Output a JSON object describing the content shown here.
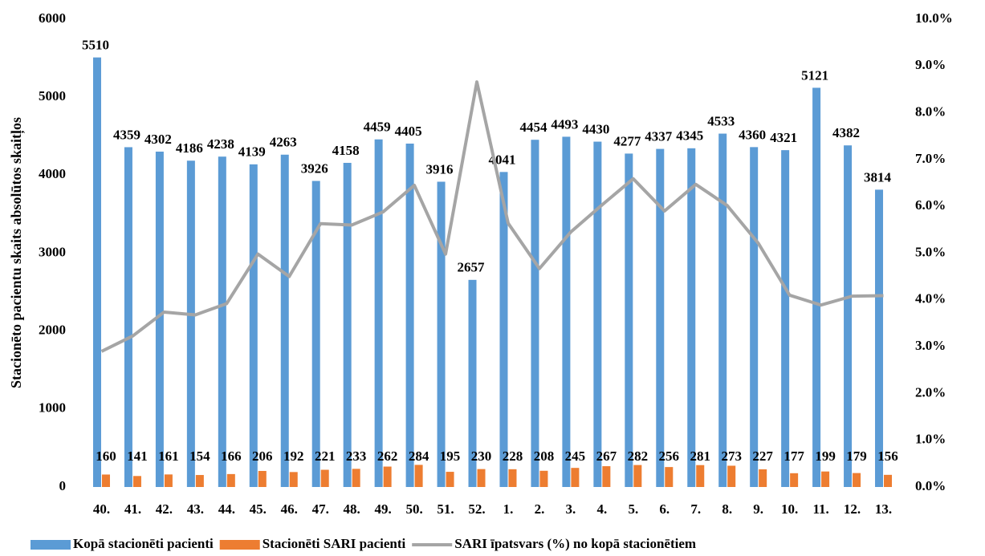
{
  "chart_data": {
    "type": "bar",
    "y_label": "Stacionēto pacientu skaits absolūtos skaitļos",
    "categories": [
      "40.",
      "41.",
      "42.",
      "43.",
      "44.",
      "45.",
      "46.",
      "47.",
      "48.",
      "49.",
      "50.",
      "51.",
      "52.",
      "1.",
      "2.",
      "3.",
      "4.",
      "5.",
      "6.",
      "7.",
      "8.",
      "9.",
      "10.",
      "11.",
      "12.",
      "13."
    ],
    "series": [
      {
        "name": "Kopā stacionēti pacienti",
        "type": "bar",
        "color": "#5b9bd5",
        "values": [
          5510,
          4359,
          4302,
          4186,
          4238,
          4139,
          4263,
          3926,
          4158,
          4459,
          4405,
          3916,
          2657,
          4041,
          4454,
          4493,
          4430,
          4277,
          4337,
          4345,
          4533,
          4360,
          4321,
          5121,
          4382,
          3814
        ]
      },
      {
        "name": "Stacionēti SARI pacienti",
        "type": "bar",
        "color": "#ed7d31",
        "values": [
          160,
          141,
          161,
          154,
          166,
          206,
          192,
          221,
          233,
          262,
          284,
          195,
          230,
          228,
          208,
          245,
          267,
          282,
          256,
          281,
          273,
          227,
          177,
          199,
          179,
          156
        ]
      },
      {
        "name": "SARI īpatsvars (%) no kopā stacionētiem",
        "type": "line",
        "color": "#a5a5a5",
        "axis": "y2",
        "values": [
          2.9,
          3.23,
          3.74,
          3.68,
          3.92,
          4.98,
          4.5,
          5.63,
          5.6,
          5.88,
          6.45,
          4.98,
          8.66,
          5.64,
          4.67,
          5.45,
          6.03,
          6.59,
          5.9,
          6.47,
          6.02,
          5.21,
          4.1,
          3.89,
          4.08,
          4.09
        ]
      }
    ],
    "ylim": [
      0,
      6000
    ],
    "yticks": [
      0,
      1000,
      2000,
      3000,
      4000,
      5000,
      6000
    ],
    "y2lim": [
      0,
      10
    ],
    "y2ticks": [
      {
        "value": 0,
        "label": "0.0%"
      },
      {
        "value": 1,
        "label": "1.0%"
      },
      {
        "value": 2,
        "label": "2.0%"
      },
      {
        "value": 3,
        "label": "3.0%"
      },
      {
        "value": 4,
        "label": "4.0%"
      },
      {
        "value": 5,
        "label": "5.0%"
      },
      {
        "value": 6,
        "label": "6.0%"
      },
      {
        "value": 7,
        "label": "7.0%"
      },
      {
        "value": 8,
        "label": "8.0%"
      },
      {
        "value": 9,
        "label": "9.0%"
      },
      {
        "value": 10,
        "label": "10.0%"
      }
    ],
    "grid": false,
    "legend": "bottom"
  }
}
